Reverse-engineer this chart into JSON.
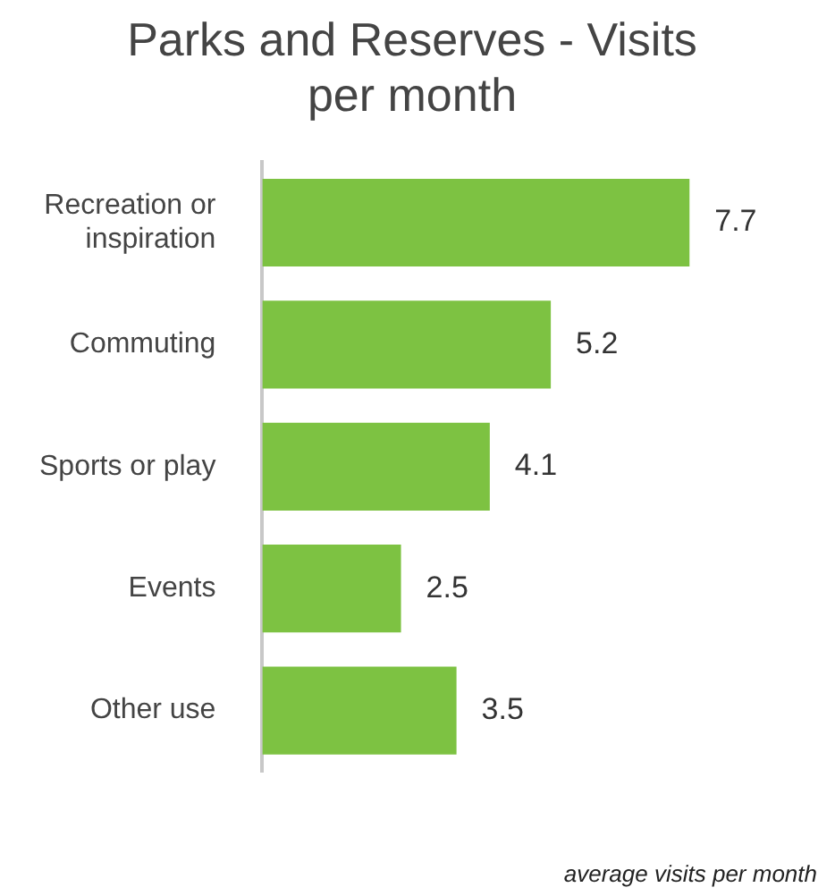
{
  "chart_data": {
    "type": "bar",
    "orientation": "horizontal",
    "title": "Parks and Reserves - Visits per month",
    "categories": [
      "Recreation or inspiration",
      "Commuting",
      "Sports or play",
      "Events",
      "Other use"
    ],
    "values": [
      7.7,
      5.2,
      4.1,
      2.5,
      3.5
    ],
    "color": "#7dc242",
    "data_labels": true,
    "legend": false,
    "tick_labels": "y",
    "annotations": [
      "average visits per month"
    ]
  }
}
